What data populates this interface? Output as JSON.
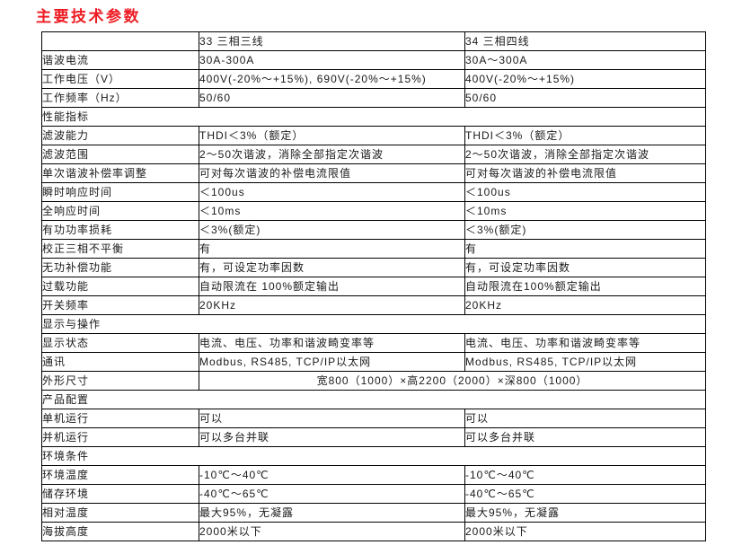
{
  "page_title": "主要技术参数",
  "colors": {
    "title_red": "#ed1c24",
    "border": "#000000",
    "text": "#1a1a1a",
    "background": "#ffffff"
  },
  "table": {
    "columns": [
      "",
      "33 三相三线",
      "34 三相四线"
    ],
    "rows": [
      {
        "type": "data",
        "label": "谐波电流",
        "col1": "30A-300A",
        "col2": "30A～300A"
      },
      {
        "type": "data",
        "label": "工作电压（V）",
        "col1": "400V(-20%～+15%), 690V(-20%～+15%)",
        "col2": "400V(-20%～+15%)"
      },
      {
        "type": "data",
        "label": "工作频率（Hz）",
        "col1": "50/60",
        "col2": "50/60"
      },
      {
        "type": "section",
        "label": "性能指标"
      },
      {
        "type": "data",
        "label": "滤波能力",
        "col1": "THDI＜3%（额定）",
        "col2": "THDI＜3%（额定）"
      },
      {
        "type": "data",
        "label": "滤波范围",
        "col1": "2～50次谐波，消除全部指定次谐波",
        "col2": "2～50次谐波，消除全部指定次谐波"
      },
      {
        "type": "data",
        "label": "单次谐波补偿率调整",
        "col1": "可对每次谐波的补偿电流限值",
        "col2": "可对每次谐波的补偿电流限值"
      },
      {
        "type": "data",
        "label": "瞬时响应时间",
        "col1": "＜100us",
        "col2": "＜100us"
      },
      {
        "type": "data",
        "label": "全响应时间",
        "col1": "＜10ms",
        "col2": "＜10ms"
      },
      {
        "type": "data",
        "label": "有功功率损耗",
        "col1": "＜3%(额定)",
        "col2": "＜3%(额定)"
      },
      {
        "type": "data",
        "label": "校正三相不平衡",
        "col1": "有",
        "col2": "有"
      },
      {
        "type": "data",
        "label": "无功补偿功能",
        "col1": "有，可设定功率因数",
        "col2": "有，可设定功率因数"
      },
      {
        "type": "data",
        "label": "过载功能",
        "col1": "自动限流在 100%额定输出",
        "col2": "自动限流在100%额定输出"
      },
      {
        "type": "data",
        "label": "开关频率",
        "col1": "20KHz",
        "col2": "20KHz"
      },
      {
        "type": "section",
        "label": "显示与操作"
      },
      {
        "type": "data",
        "label": "显示状态",
        "col1": "电流、电压、功率和谐波畸变率等",
        "col2": "电流、电压、功率和谐波畸变率等"
      },
      {
        "type": "data",
        "label": "通讯",
        "col1": "Modbus, RS485, TCP/IP以太网",
        "col2": "Modbus, RS485, TCP/IP以太网"
      },
      {
        "type": "merged",
        "label": "外形尺寸",
        "value": "宽800（1000）×高2200（2000）×深800（1000）"
      },
      {
        "type": "section",
        "label": "产品配置"
      },
      {
        "type": "data",
        "label": "单机运行",
        "col1": "可以",
        "col2": "可以"
      },
      {
        "type": "data",
        "label": "并机运行",
        "col1": "可以多台并联",
        "col2": "可以多台并联"
      },
      {
        "type": "section",
        "label": "环境条件"
      },
      {
        "type": "data",
        "label": "环境温度",
        "col1": "-10℃～40℃",
        "col2": "-10℃～40℃"
      },
      {
        "type": "data",
        "label": "储存环境",
        "col1": "-40℃～65℃",
        "col2": "-40℃～65℃"
      },
      {
        "type": "data",
        "label": "相对温度",
        "col1": "最大95%，无凝露",
        "col2": "最大95%，无凝露"
      },
      {
        "type": "data",
        "label": "海拔高度",
        "col1": "2000米以下",
        "col2": "2000米以下"
      }
    ]
  }
}
